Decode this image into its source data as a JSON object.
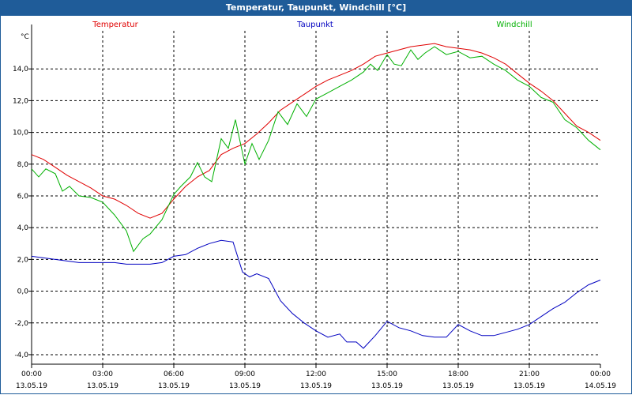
{
  "window": {
    "title": "Temperatur, Taupunkt, Windchill [°C]"
  },
  "chart_data": {
    "type": "line",
    "title": "Temperatur, Taupunkt, Windchill [°C]",
    "ylabel": "°C",
    "xlabel": "",
    "ylim": [
      -4.6,
      16.4
    ],
    "xlim": [
      0,
      24
    ],
    "grid": true,
    "y_ticks": [
      {
        "value": -4,
        "label": "-4,0"
      },
      {
        "value": -2,
        "label": "-2,0"
      },
      {
        "value": 0,
        "label": "0,0"
      },
      {
        "value": 2,
        "label": "2,0"
      },
      {
        "value": 4,
        "label": "4,0"
      },
      {
        "value": 6,
        "label": "6,0"
      },
      {
        "value": 8,
        "label": "8,0"
      },
      {
        "value": 10,
        "label": "10,0"
      },
      {
        "value": 12,
        "label": "12,0"
      },
      {
        "value": 14,
        "label": "14,0"
      }
    ],
    "x_ticks": [
      {
        "value": 0,
        "time": "00:00",
        "date": "13.05.19"
      },
      {
        "value": 3,
        "time": "03:00",
        "date": "13.05.19"
      },
      {
        "value": 6,
        "time": "06:00",
        "date": "13.05.19"
      },
      {
        "value": 9,
        "time": "09:00",
        "date": "13.05.19"
      },
      {
        "value": 12,
        "time": "12:00",
        "date": "13.05.19"
      },
      {
        "value": 15,
        "time": "15:00",
        "date": "13.05.19"
      },
      {
        "value": 18,
        "time": "18:00",
        "date": "13.05.19"
      },
      {
        "value": 21,
        "time": "21:00",
        "date": "13.05.19"
      },
      {
        "value": 24,
        "time": "00:00",
        "date": "14.05.19"
      }
    ],
    "series": [
      {
        "name": "Temperatur",
        "color": "#e00000",
        "x": [
          0,
          0.5,
          1,
          1.5,
          2,
          2.5,
          3,
          3.5,
          4,
          4.5,
          5,
          5.5,
          6,
          6.5,
          7,
          7.5,
          8,
          8.5,
          9,
          9.5,
          10,
          10.5,
          11,
          11.5,
          12,
          12.5,
          13,
          13.5,
          14,
          14.5,
          15,
          15.5,
          16,
          16.5,
          17,
          17.5,
          18,
          18.5,
          19,
          19.5,
          20,
          20.5,
          21,
          21.5,
          22,
          22.5,
          23,
          23.5,
          24
        ],
        "values": [
          8.6,
          8.3,
          7.8,
          7.3,
          6.9,
          6.5,
          6.0,
          5.8,
          5.4,
          4.9,
          4.6,
          4.9,
          5.8,
          6.6,
          7.2,
          7.6,
          8.6,
          9.0,
          9.3,
          9.9,
          10.6,
          11.4,
          11.9,
          12.4,
          12.9,
          13.3,
          13.6,
          13.9,
          14.3,
          14.8,
          15.0,
          15.2,
          15.4,
          15.5,
          15.6,
          15.4,
          15.3,
          15.2,
          15.0,
          14.7,
          14.3,
          13.7,
          13.1,
          12.6,
          12.0,
          11.2,
          10.4,
          10.0,
          9.5
        ]
      },
      {
        "name": "Taupunkt",
        "color": "#0000c0",
        "x": [
          0,
          0.5,
          1,
          1.5,
          2,
          2.5,
          3,
          3.5,
          4,
          4.5,
          5,
          5.5,
          6,
          6.5,
          7,
          7.5,
          8,
          8.5,
          8.9,
          9.2,
          9.5,
          10,
          10.5,
          11,
          11.5,
          12,
          12.5,
          13,
          13.3,
          13.7,
          14,
          14.5,
          15,
          15.5,
          16,
          16.5,
          17,
          17.5,
          18,
          18.5,
          19,
          19.5,
          20,
          20.5,
          21,
          21.5,
          22,
          22.5,
          23,
          23.5,
          24
        ],
        "values": [
          2.2,
          2.1,
          2.0,
          1.9,
          1.8,
          1.8,
          1.8,
          1.8,
          1.7,
          1.7,
          1.7,
          1.8,
          2.2,
          2.3,
          2.7,
          3.0,
          3.2,
          3.1,
          1.2,
          0.9,
          1.1,
          0.8,
          -0.6,
          -1.4,
          -2.0,
          -2.5,
          -2.9,
          -2.7,
          -3.2,
          -3.2,
          -3.6,
          -2.8,
          -1.9,
          -2.3,
          -2.5,
          -2.8,
          -2.9,
          -2.9,
          -2.1,
          -2.5,
          -2.8,
          -2.8,
          -2.6,
          -2.4,
          -2.1,
          -1.6,
          -1.1,
          -0.7,
          -0.1,
          0.4,
          0.7
        ]
      },
      {
        "name": "Windchill",
        "color": "#00b000",
        "x": [
          0,
          0.3,
          0.6,
          1,
          1.3,
          1.6,
          2,
          2.5,
          3,
          3.5,
          4,
          4.3,
          4.7,
          5,
          5.5,
          6,
          6.3,
          6.7,
          7,
          7.3,
          7.6,
          8,
          8.3,
          8.6,
          9,
          9.3,
          9.6,
          10,
          10.4,
          10.8,
          11.2,
          11.6,
          12,
          12.5,
          13,
          13.5,
          14,
          14.3,
          14.6,
          15,
          15.3,
          15.6,
          16,
          16.3,
          16.6,
          17,
          17.5,
          18,
          18.5,
          19,
          19.5,
          20,
          20.5,
          21,
          21.5,
          22,
          22.5,
          23,
          23.5,
          24
        ],
        "values": [
          7.7,
          7.2,
          7.7,
          7.4,
          6.3,
          6.6,
          6.0,
          5.9,
          5.6,
          4.8,
          3.8,
          2.5,
          3.3,
          3.6,
          4.5,
          6.1,
          6.6,
          7.2,
          8.1,
          7.2,
          6.9,
          9.6,
          9.0,
          10.8,
          8.0,
          9.3,
          8.3,
          9.5,
          11.3,
          10.5,
          11.8,
          11.0,
          12.1,
          12.5,
          12.9,
          13.3,
          13.8,
          14.3,
          13.9,
          14.9,
          14.3,
          14.2,
          15.2,
          14.6,
          15.0,
          15.4,
          14.9,
          15.1,
          14.7,
          14.8,
          14.3,
          13.9,
          13.3,
          12.9,
          12.2,
          11.9,
          10.8,
          10.3,
          9.5,
          8.9
        ]
      }
    ]
  }
}
